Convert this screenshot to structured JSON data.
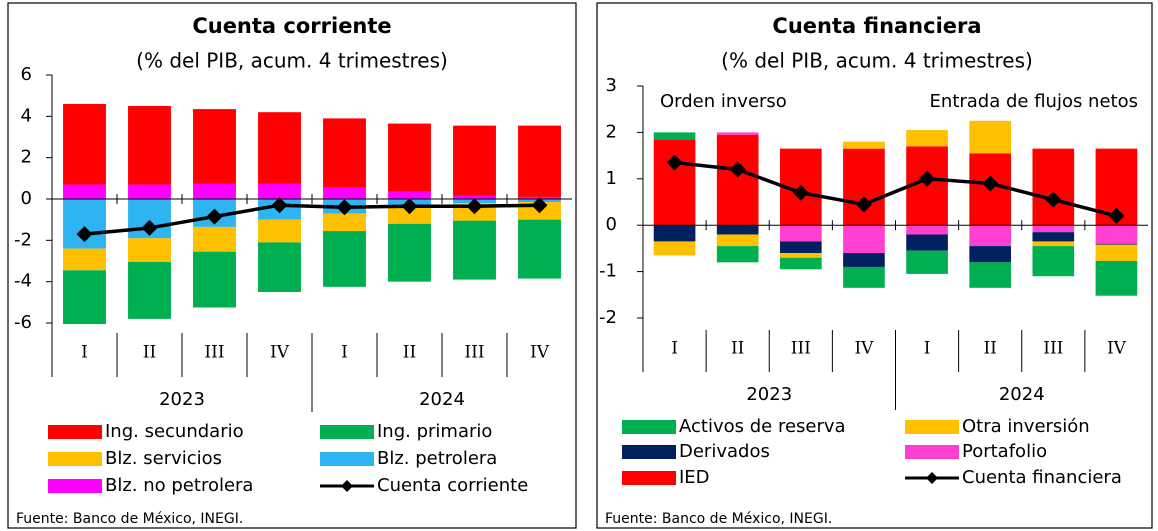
{
  "chart_data": [
    {
      "type": "bar",
      "stacked": true,
      "title": "Cuenta corriente",
      "subtitle": "(% del PIB, acum. 4 trimestres)",
      "categories": [
        "I",
        "II",
        "III",
        "IV",
        "I",
        "II",
        "III",
        "IV"
      ],
      "category_groups": [
        "2023",
        "2024"
      ],
      "ylim": [
        -6,
        6
      ],
      "yticks": [
        -6,
        -4,
        -2,
        0,
        2,
        4,
        6
      ],
      "series": [
        {
          "name": "Blz. no petrolera",
          "color": "#ff00ff",
          "values": [
            0.7,
            0.7,
            0.75,
            0.75,
            0.55,
            0.35,
            0.15,
            0.1
          ]
        },
        {
          "name": "Ing. secundario",
          "color": "#ff0000",
          "values": [
            3.9,
            3.8,
            3.6,
            3.45,
            3.35,
            3.3,
            3.4,
            3.45
          ]
        },
        {
          "name": "Blz. petrolera",
          "color": "#2eb4f0",
          "values": [
            -2.4,
            -1.9,
            -1.35,
            -1.0,
            -0.7,
            -0.4,
            -0.2,
            -0.15
          ]
        },
        {
          "name": "Blz. servicios",
          "color": "#ffc000",
          "values": [
            -1.05,
            -1.15,
            -1.2,
            -1.1,
            -0.85,
            -0.8,
            -0.85,
            -0.85
          ]
        },
        {
          "name": "Ing. primario",
          "color": "#00b050",
          "values": [
            -2.6,
            -2.75,
            -2.7,
            -2.4,
            -2.7,
            -2.8,
            -2.85,
            -2.85
          ]
        },
        {
          "name": "Cuenta corriente",
          "type": "line",
          "color": "#000000",
          "values": [
            -1.7,
            -1.4,
            -0.85,
            -0.3,
            -0.4,
            -0.35,
            -0.35,
            -0.3
          ]
        }
      ],
      "source": "Fuente: Banco de México, INEGI."
    },
    {
      "type": "bar",
      "stacked": true,
      "title": "Cuenta financiera",
      "subtitle": "(% del PIB, acum. 4 trimestres)",
      "annotations": [
        "Orden inverso",
        "Entrada de flujos netos"
      ],
      "categories": [
        "I",
        "II",
        "III",
        "IV",
        "I",
        "II",
        "III",
        "IV"
      ],
      "category_groups": [
        "2023",
        "2024"
      ],
      "ylim": [
        -2,
        3
      ],
      "yticks": [
        -2,
        -1,
        0,
        1,
        2,
        3
      ],
      "series": [
        {
          "name": "IED",
          "color": "#ff0000",
          "values": [
            1.85,
            1.95,
            1.65,
            1.65,
            1.7,
            1.55,
            1.65,
            1.65
          ]
        },
        {
          "name": "Portafolio",
          "color": "#ff40d0",
          "values": [
            0,
            0.05,
            -0.35,
            -0.6,
            -0.2,
            -0.45,
            -0.15,
            -0.4
          ]
        },
        {
          "name": "Derivados",
          "color": "#002060",
          "values": [
            -0.35,
            -0.2,
            -0.25,
            -0.3,
            -0.35,
            -0.35,
            -0.2,
            -0.02
          ]
        },
        {
          "name": "Otra inversión",
          "color": "#ffc000",
          "values": [
            -0.3,
            -0.25,
            -0.1,
            0.15,
            0.35,
            0.7,
            -0.1,
            -0.35
          ]
        },
        {
          "name": "Activos de reserva",
          "color": "#00b050",
          "values": [
            0.15,
            -0.35,
            -0.25,
            -0.45,
            -0.5,
            -0.55,
            -0.65,
            -0.75
          ]
        },
        {
          "name": "Cuenta financiera",
          "type": "line",
          "color": "#000000",
          "values": [
            1.35,
            1.2,
            0.7,
            0.45,
            1.0,
            0.9,
            0.55,
            0.2
          ]
        }
      ],
      "source": "Fuente: Banco de México, INEGI."
    }
  ]
}
